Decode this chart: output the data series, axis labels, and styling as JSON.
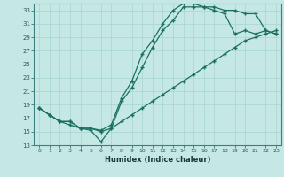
{
  "xlabel": "Humidex (Indice chaleur)",
  "bg_color": "#c5e8e5",
  "line_color": "#1a7060",
  "grid_color": "#a8d4d0",
  "xlim": [
    -0.5,
    23.5
  ],
  "ylim": [
    13,
    34
  ],
  "xticks": [
    0,
    1,
    2,
    3,
    4,
    5,
    6,
    7,
    8,
    9,
    10,
    11,
    12,
    13,
    14,
    15,
    16,
    17,
    18,
    19,
    20,
    21,
    22,
    23
  ],
  "yticks": [
    13,
    15,
    17,
    19,
    21,
    23,
    25,
    27,
    29,
    31,
    33
  ],
  "line1_x": [
    0,
    1,
    2,
    3,
    4,
    5,
    6,
    7,
    8,
    9,
    10,
    11,
    12,
    13,
    14,
    15,
    16,
    17,
    18,
    19,
    20,
    21,
    22,
    23
  ],
  "line1_y": [
    18.5,
    17.5,
    16.5,
    16.0,
    15.5,
    15.2,
    13.5,
    15.5,
    16.5,
    17.5,
    18.5,
    19.5,
    20.5,
    21.5,
    22.5,
    23.5,
    24.5,
    25.5,
    26.5,
    27.5,
    28.5,
    29.0,
    29.5,
    30.0
  ],
  "line2_x": [
    0,
    1,
    2,
    3,
    4,
    5,
    6,
    7,
    8,
    9,
    10,
    11,
    12,
    13,
    14,
    15,
    16,
    17,
    18,
    19,
    20,
    21,
    22,
    23
  ],
  "line2_y": [
    18.5,
    17.5,
    16.5,
    16.5,
    15.5,
    15.5,
    15.0,
    15.5,
    19.5,
    21.5,
    24.5,
    27.5,
    30.0,
    31.5,
    33.5,
    33.5,
    33.5,
    33.0,
    32.5,
    29.5,
    30.0,
    29.5,
    30.0,
    29.5
  ],
  "line3_x": [
    0,
    1,
    2,
    3,
    4,
    5,
    6,
    7,
    8,
    9,
    10,
    11,
    12,
    13,
    14,
    15,
    16,
    17,
    18,
    19,
    20,
    21,
    22,
    23
  ],
  "line3_y": [
    18.5,
    17.5,
    16.5,
    16.5,
    15.5,
    15.5,
    15.2,
    16.0,
    20.0,
    22.5,
    26.5,
    28.5,
    31.0,
    33.0,
    34.0,
    34.0,
    33.5,
    33.5,
    33.0,
    33.0,
    32.5,
    32.5,
    30.0,
    29.5
  ]
}
